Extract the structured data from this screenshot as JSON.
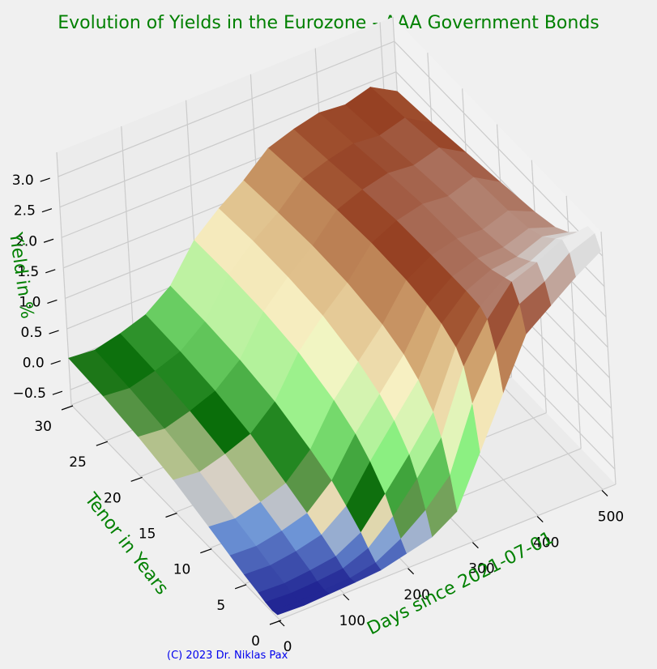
{
  "title": "Evolution of Yields in the Eurozone - AAA Government Bonds",
  "copyright": "(C) 2023 Dr. Niklas Pax",
  "colors": {
    "title": "#008000",
    "axis_label": "#008000",
    "copyright": "#0000ee",
    "background": "#f0f0f0",
    "pane": "#ebebeb",
    "grid": "#cbcbcb"
  },
  "chart_data": {
    "type": "surface3d",
    "title": "Evolution of Yields in the Eurozone - AAA Government Bonds",
    "xlabel": "Days since 2021-07-01",
    "ylabel": "Tenor in Years",
    "zlabel": "Yield in %",
    "x_ticks": [
      "0",
      "100",
      "200",
      "300",
      "400",
      "500"
    ],
    "y_ticks": [
      "0",
      "5",
      "10",
      "15",
      "20",
      "25",
      "30"
    ],
    "z_ticks": [
      "−0.5",
      "0.0",
      "0.5",
      "1.0",
      "1.5",
      "2.0",
      "2.5",
      "3.0"
    ],
    "xlim": [
      0,
      520
    ],
    "ylim": [
      0,
      30
    ],
    "zlim": [
      -0.75,
      3.4
    ],
    "colormap": "terrain-like (blue → green → cream → brown → white)",
    "grid": true,
    "days": [
      0,
      40,
      80,
      120,
      160,
      200,
      240,
      280,
      320,
      360,
      400,
      440,
      480,
      520
    ],
    "tenors": [
      0.25,
      1,
      2,
      3,
      5,
      7,
      10,
      15,
      20,
      25,
      30
    ],
    "yields": [
      [
        -0.7,
        -0.72,
        -0.7,
        -0.66,
        -0.6,
        -0.52,
        -0.4,
        -0.22,
        -0.1,
        -0.02,
        0.02
      ],
      [
        -0.72,
        -0.74,
        -0.72,
        -0.68,
        -0.62,
        -0.54,
        -0.44,
        -0.26,
        -0.14,
        -0.06,
        -0.02
      ],
      [
        -0.7,
        -0.72,
        -0.7,
        -0.64,
        -0.56,
        -0.46,
        -0.34,
        -0.14,
        -0.02,
        0.05,
        0.08
      ],
      [
        -0.68,
        -0.7,
        -0.66,
        -0.58,
        -0.46,
        -0.34,
        -0.2,
        0.02,
        0.14,
        0.2,
        0.22
      ],
      [
        -0.65,
        -0.62,
        -0.5,
        -0.36,
        -0.16,
        0.02,
        0.18,
        0.38,
        0.48,
        0.52,
        0.52
      ],
      [
        -0.55,
        -0.4,
        -0.15,
        0.1,
        0.4,
        0.62,
        0.82,
        1.02,
        1.1,
        1.12,
        1.1
      ],
      [
        -0.45,
        -0.1,
        0.3,
        0.58,
        0.9,
        1.1,
        1.28,
        1.45,
        1.5,
        1.5,
        1.45
      ],
      [
        -0.2,
        0.3,
        0.8,
        1.1,
        1.4,
        1.58,
        1.72,
        1.82,
        1.84,
        1.8,
        1.74
      ],
      [
        0.6,
        1.3,
        1.8,
        2.0,
        2.15,
        2.22,
        2.28,
        2.3,
        2.26,
        2.18,
        2.1
      ],
      [
        1.4,
        2.0,
        2.4,
        2.5,
        2.52,
        2.52,
        2.52,
        2.5,
        2.42,
        2.32,
        2.24
      ],
      [
        2.2,
        2.6,
        2.85,
        2.8,
        2.7,
        2.65,
        2.62,
        2.6,
        2.52,
        2.42,
        2.34
      ],
      [
        2.5,
        2.8,
        3.0,
        2.9,
        2.74,
        2.66,
        2.6,
        2.56,
        2.48,
        2.38,
        2.3
      ],
      [
        2.8,
        3.1,
        3.2,
        3.1,
        2.9,
        2.8,
        2.74,
        2.7,
        2.6,
        2.5,
        2.42
      ],
      [
        3.05,
        3.25,
        3.25,
        3.05,
        2.8,
        2.65,
        2.55,
        2.45,
        2.35,
        2.25,
        2.18
      ]
    ]
  }
}
